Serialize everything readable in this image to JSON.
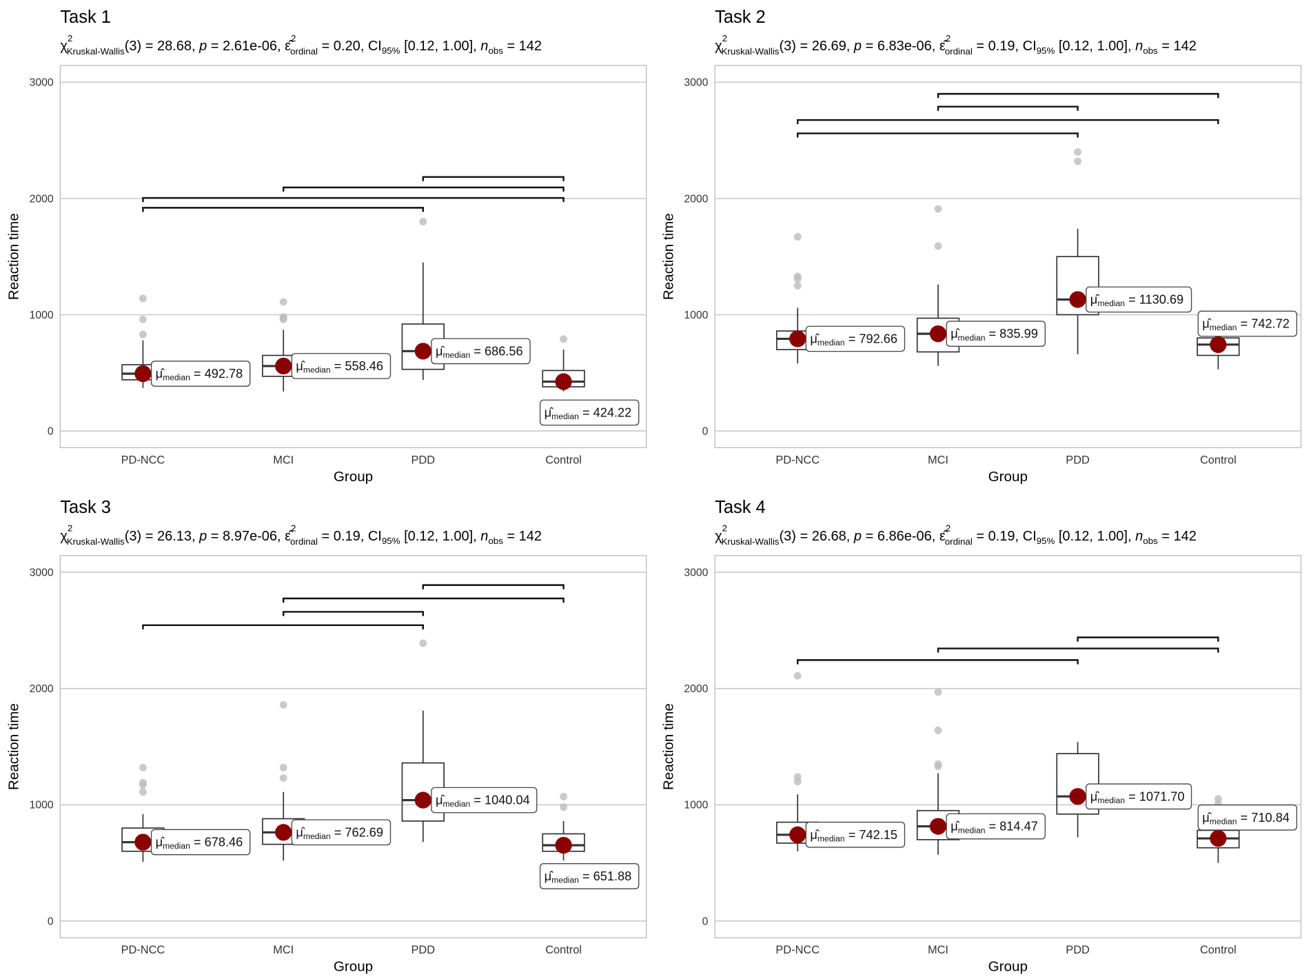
{
  "chart_data": {
    "type": "box",
    "xlabel": "Group",
    "ylabel": "Reaction time",
    "categories": [
      "PD-NCC",
      "MCI",
      "PDD",
      "Control"
    ],
    "ylim": [
      -150,
      3150
    ],
    "yticks": [
      0,
      1000,
      2000,
      3000
    ],
    "grid": true,
    "colors": {
      "point": "#8b0000",
      "outlier": "#bdbdbd",
      "grid": "#c8c8c8",
      "box": "#333333"
    },
    "label_prefix": "μ̂",
    "label_sub": "median",
    "subtitle_parts": {
      "stat_symbol": "χ",
      "stat_sup": "2",
      "stat_sub": "Kruskal-Wallis",
      "df": "(3)",
      "p_label": "p",
      "effect_symbol": "ε̂",
      "effect_sup": "2",
      "effect_sub": "ordinal",
      "ci_label": "CI",
      "ci_sub": "95%",
      "n_label": "n",
      "n_sub": "obs"
    },
    "panels": [
      {
        "title": "Task 1",
        "stats": {
          "statistic": "28.68",
          "p": "2.61e-06",
          "effect": "0.20",
          "ci": "[0.12, 1.00]",
          "n": "142"
        },
        "groups": [
          {
            "q1": 440,
            "median": 492.78,
            "q3": 570,
            "lo": 370,
            "hi": 780,
            "outliers": [
              1140,
              960,
              830
            ],
            "label": "492.78",
            "label_side": "right"
          },
          {
            "q1": 470,
            "median": 558.46,
            "q3": 650,
            "lo": 340,
            "hi": 870,
            "outliers": [
              1110,
              980,
              960,
              970
            ],
            "label": "558.46",
            "label_side": "right"
          },
          {
            "q1": 530,
            "median": 686.56,
            "q3": 920,
            "lo": 440,
            "hi": 1450,
            "outliers": [
              1800
            ],
            "label": "686.56",
            "label_side": "right"
          },
          {
            "q1": 380,
            "median": 424.22,
            "q3": 520,
            "lo": 340,
            "hi": 700,
            "outliers": [
              790
            ],
            "label": "424.22",
            "label_side": "below"
          }
        ],
        "comparisons": [
          {
            "from": 0,
            "to": 2,
            "y": 1920
          },
          {
            "from": 0,
            "to": 3,
            "y": 2005
          },
          {
            "from": 1,
            "to": 3,
            "y": 2095
          },
          {
            "from": 2,
            "to": 3,
            "y": 2185
          }
        ]
      },
      {
        "title": "Task 2",
        "stats": {
          "statistic": "26.69",
          "p": "6.83e-06",
          "effect": "0.19",
          "ci": "[0.12, 1.00]",
          "n": "142"
        },
        "groups": [
          {
            "q1": 700,
            "median": 792.66,
            "q3": 860,
            "lo": 580,
            "hi": 1060,
            "outliers": [
              1670,
              1330,
              1310,
              1250
            ],
            "label": "792.66",
            "label_side": "right"
          },
          {
            "q1": 680,
            "median": 835.99,
            "q3": 970,
            "lo": 560,
            "hi": 1260,
            "outliers": [
              1910,
              1590
            ],
            "label": "835.99",
            "label_side": "right"
          },
          {
            "q1": 1000,
            "median": 1130.69,
            "q3": 1500,
            "lo": 660,
            "hi": 1740,
            "outliers": [
              2400,
              2320
            ],
            "label": "1130.69",
            "label_side": "right"
          },
          {
            "q1": 650,
            "median": 742.72,
            "q3": 800,
            "lo": 530,
            "hi": 900,
            "outliers": [],
            "label": "742.72",
            "label_side": "above"
          }
        ],
        "comparisons": [
          {
            "from": 0,
            "to": 2,
            "y": 2560
          },
          {
            "from": 0,
            "to": 3,
            "y": 2675
          },
          {
            "from": 1,
            "to": 2,
            "y": 2790
          },
          {
            "from": 1,
            "to": 3,
            "y": 2900
          }
        ]
      },
      {
        "title": "Task 3",
        "stats": {
          "statistic": "26.13",
          "p": "8.97e-06",
          "effect": "0.19",
          "ci": "[0.12, 1.00]",
          "n": "142"
        },
        "groups": [
          {
            "q1": 600,
            "median": 678.46,
            "q3": 800,
            "lo": 510,
            "hi": 920,
            "outliers": [
              1320,
              1190,
              1170,
              1110
            ],
            "label": "678.46",
            "label_side": "right"
          },
          {
            "q1": 660,
            "median": 762.69,
            "q3": 880,
            "lo": 520,
            "hi": 1110,
            "outliers": [
              1860,
              1320,
              1230
            ],
            "label": "762.69",
            "label_side": "right"
          },
          {
            "q1": 860,
            "median": 1040.04,
            "q3": 1360,
            "lo": 680,
            "hi": 1810,
            "outliers": [
              2390
            ],
            "label": "1040.04",
            "label_side": "right"
          },
          {
            "q1": 600,
            "median": 651.88,
            "q3": 750,
            "lo": 520,
            "hi": 860,
            "outliers": [
              1070,
              980
            ],
            "label": "651.88",
            "label_side": "below"
          }
        ],
        "comparisons": [
          {
            "from": 0,
            "to": 2,
            "y": 2545
          },
          {
            "from": 1,
            "to": 2,
            "y": 2660
          },
          {
            "from": 1,
            "to": 3,
            "y": 2775
          },
          {
            "from": 2,
            "to": 3,
            "y": 2890
          }
        ]
      },
      {
        "title": "Task 4",
        "stats": {
          "statistic": "26.68",
          "p": "6.86e-06",
          "effect": "0.19",
          "ci": "[0.12, 1.00]",
          "n": "142"
        },
        "groups": [
          {
            "q1": 670,
            "median": 742.15,
            "q3": 850,
            "lo": 600,
            "hi": 1090,
            "outliers": [
              2110,
              1240,
              1200
            ],
            "label": "742.15",
            "label_side": "right"
          },
          {
            "q1": 700,
            "median": 814.47,
            "q3": 950,
            "lo": 570,
            "hi": 1270,
            "outliers": [
              1970,
              1640,
              1350,
              1330
            ],
            "label": "814.47",
            "label_side": "right"
          },
          {
            "q1": 920,
            "median": 1071.7,
            "q3": 1440,
            "lo": 720,
            "hi": 1540,
            "outliers": [],
            "label": "1071.70",
            "label_side": "right"
          },
          {
            "q1": 630,
            "median": 710.84,
            "q3": 780,
            "lo": 500,
            "hi": 860,
            "outliers": [
              1050,
              1010
            ],
            "label": "710.84",
            "label_side": "above"
          }
        ],
        "comparisons": [
          {
            "from": 0,
            "to": 2,
            "y": 2245
          },
          {
            "from": 1,
            "to": 3,
            "y": 2345
          },
          {
            "from": 2,
            "to": 3,
            "y": 2440
          }
        ]
      }
    ]
  }
}
